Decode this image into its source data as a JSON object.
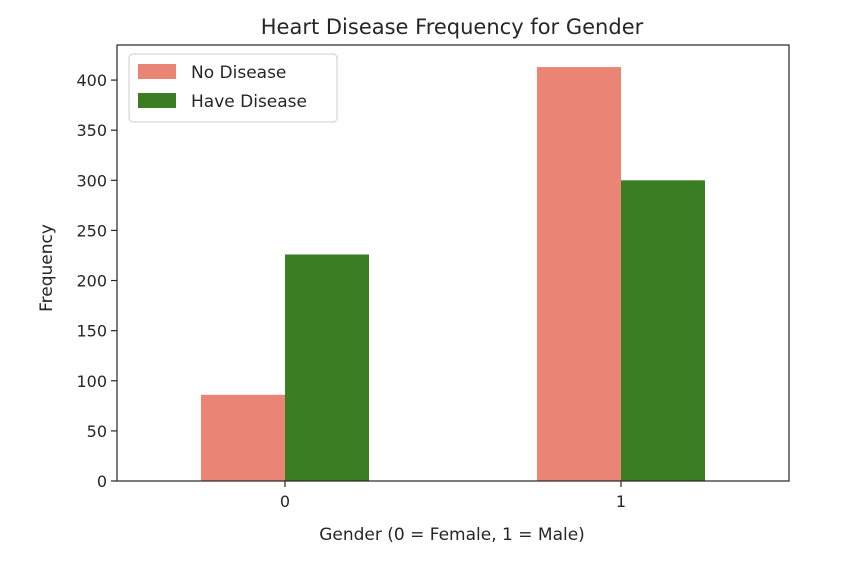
{
  "chart_data": {
    "type": "bar",
    "title": "Heart Disease Frequency for Gender",
    "xlabel": "Gender (0 = Female, 1 = Male)",
    "ylabel": "Frequency",
    "categories": [
      "0",
      "1"
    ],
    "series": [
      {
        "name": "No Disease",
        "values": [
          86,
          413
        ],
        "color": "#ea8474"
      },
      {
        "name": "Have Disease",
        "values": [
          226,
          300
        ],
        "color": "#3a7d22"
      }
    ],
    "ylim": [
      0,
      435
    ],
    "yticks": [
      0,
      50,
      100,
      150,
      200,
      250,
      300,
      350,
      400
    ],
    "grid": false,
    "legend": "top-left"
  }
}
